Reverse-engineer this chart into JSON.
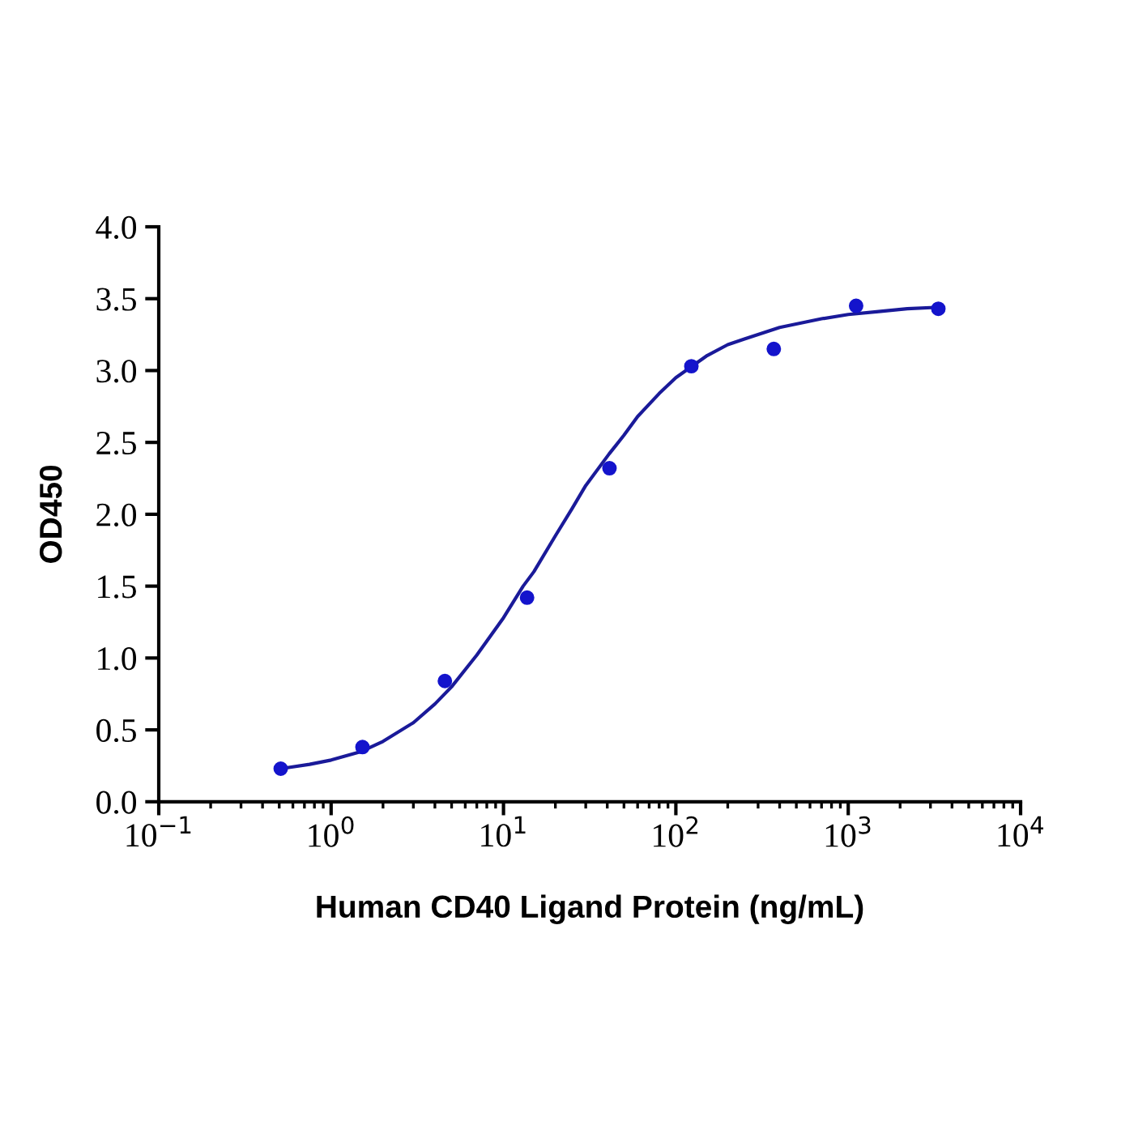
{
  "chart_data": {
    "type": "scatter",
    "xlabel": "Human CD40 Ligand Protein (ng/mL)",
    "ylabel": "OD450",
    "log": "x",
    "grid": false,
    "legend": false,
    "series": [
      {
        "color": "#1414cc",
        "marker": "circle",
        "x": [
          0.51,
          1.52,
          4.57,
          13.7,
          41.2,
          123,
          370,
          1111,
          3333
        ],
        "values": [
          0.23,
          0.38,
          0.84,
          1.42,
          2.32,
          3.03,
          3.15,
          3.45,
          3.43
        ]
      },
      {
        "type": "line",
        "color": "#1a1a99",
        "marker": "none",
        "line_style": "solid",
        "x": [
          0.51,
          0.75,
          1,
          1.5,
          2,
          3,
          4,
          5,
          7,
          10,
          13,
          15,
          20,
          25,
          30,
          41,
          50,
          60,
          80,
          100,
          150,
          200,
          250,
          400,
          700,
          1000,
          1500,
          2200,
          3333
        ],
        "values": [
          0.23,
          0.26,
          0.29,
          0.35,
          0.42,
          0.55,
          0.68,
          0.8,
          1.02,
          1.28,
          1.5,
          1.6,
          1.85,
          2.04,
          2.2,
          2.42,
          2.55,
          2.68,
          2.84,
          2.95,
          3.1,
          3.18,
          3.22,
          3.3,
          3.36,
          3.39,
          3.41,
          3.43,
          3.44
        ]
      }
    ],
    "xlim": [
      0.1,
      10000
    ],
    "ylim": [
      0,
      4.0
    ],
    "xticks": [
      {
        "value": 0.1,
        "label": "10$^{−1}$"
      },
      {
        "value": 1,
        "label": "10$^{0}$"
      },
      {
        "value": 10,
        "label": "10$^{1}$"
      },
      {
        "value": 100,
        "label": "10$^{2}$"
      },
      {
        "value": 1000,
        "label": "10$^{3}$"
      },
      {
        "value": 10000,
        "label": "10$^{4}$"
      }
    ],
    "yticks": [
      {
        "value": 0,
        "label": "0.0"
      },
      {
        "value": 0.5,
        "label": "0.5"
      },
      {
        "value": 1.0,
        "label": "1.0"
      },
      {
        "value": 1.5,
        "label": "1.5"
      },
      {
        "value": 2.0,
        "label": "2.0"
      },
      {
        "value": 2.5,
        "label": "2.5"
      },
      {
        "value": 3.0,
        "label": "3.0"
      },
      {
        "value": 3.5,
        "label": "3.5"
      },
      {
        "value": 4.0,
        "label": "4.0"
      }
    ]
  }
}
